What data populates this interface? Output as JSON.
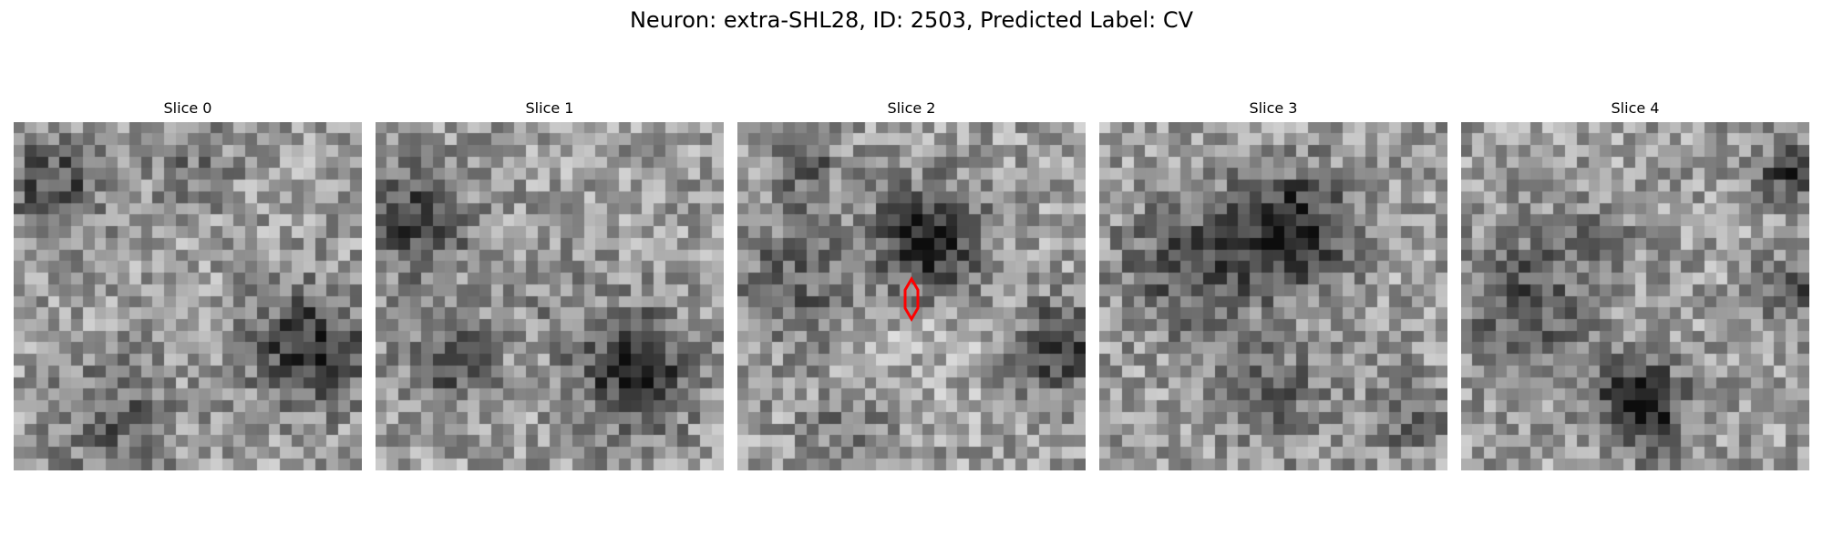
{
  "figure": {
    "title": "Neuron: extra-SHL28, ID: 2503, Predicted Label: CV",
    "colormap": "gray",
    "grid_size": 30,
    "panels": [
      {
        "label": "Slice 0"
      },
      {
        "label": "Slice 1"
      },
      {
        "label": "Slice 2",
        "has_marker": true
      },
      {
        "label": "Slice 3"
      },
      {
        "label": "Slice 4"
      }
    ],
    "marker": {
      "shape": "elongated hexagon",
      "color": "#ff0000"
    }
  }
}
